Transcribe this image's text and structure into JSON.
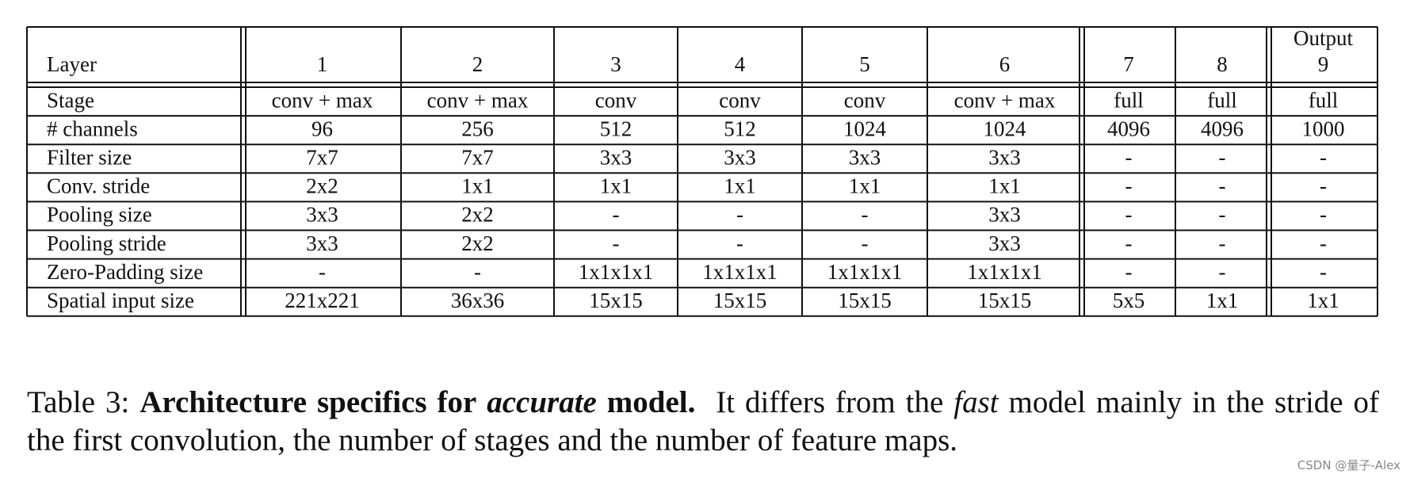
{
  "table": {
    "header": [
      "Layer",
      "1",
      "2",
      "3",
      "4",
      "5",
      "6",
      "7",
      "8",
      "9"
    ],
    "output_label": "Output",
    "rows": [
      [
        "Stage",
        "conv + max",
        "conv + max",
        "conv",
        "conv",
        "conv",
        "conv + max",
        "full",
        "full",
        "full"
      ],
      [
        "# channels",
        "96",
        "256",
        "512",
        "512",
        "1024",
        "1024",
        "4096",
        "4096",
        "1000"
      ],
      [
        "Filter size",
        "7x7",
        "7x7",
        "3x3",
        "3x3",
        "3x3",
        "3x3",
        "-",
        "-",
        "-"
      ],
      [
        "Conv. stride",
        "2x2",
        "1x1",
        "1x1",
        "1x1",
        "1x1",
        "1x1",
        "-",
        "-",
        "-"
      ],
      [
        "Pooling size",
        "3x3",
        "2x2",
        "-",
        "-",
        "-",
        "3x3",
        "-",
        "-",
        "-"
      ],
      [
        "Pooling stride",
        "3x3",
        "2x2",
        "-",
        "-",
        "-",
        "3x3",
        "-",
        "-",
        "-"
      ],
      [
        "Zero-Padding size",
        "-",
        "-",
        "1x1x1x1",
        "1x1x1x1",
        "1x1x1x1",
        "1x1x1x1",
        "-",
        "-",
        "-"
      ],
      [
        "Spatial input size",
        "221x221",
        "36x36",
        "15x15",
        "15x15",
        "15x15",
        "15x15",
        "5x5",
        "1x1",
        "1x1"
      ]
    ]
  },
  "caption": {
    "label": "Table 3:",
    "bold_1": "Architecture specifics for",
    "italic_1": "accurate",
    "bold_2": "model.",
    "text_1": "It differs from the",
    "italic_2": "fast",
    "text_2": "model mainly in the stride of the first convolution, the number of stages and the number of feature maps."
  },
  "watermark": "CSDN @量子-Alex"
}
